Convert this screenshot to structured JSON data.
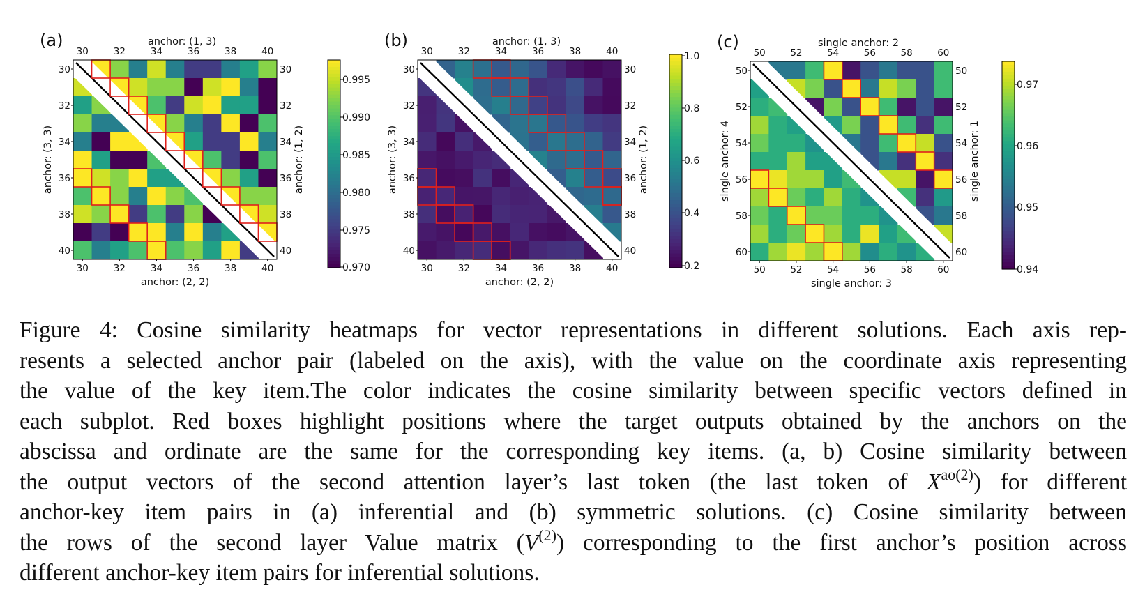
{
  "figure": {
    "panels": [
      {
        "label": "(a)",
        "top_label": "anchor: (1, 3)",
        "bottom_label": "anchor: (2, 2)",
        "left_label": "anchor: (3, 3)",
        "right_label": "anchor: (1, 2)",
        "ticks": [
          "30",
          "32",
          "34",
          "36",
          "38",
          "40"
        ],
        "colorbar_ticks": [
          "0.995",
          "0.990",
          "0.985",
          "0.980",
          "0.975",
          "0.970"
        ],
        "colorbar_range": [
          0.97,
          0.998
        ],
        "colormap": "viridis",
        "grid_size": 11
      },
      {
        "label": "(b)",
        "top_label": "anchor: (1, 3)",
        "bottom_label": "anchor: (2, 2)",
        "left_label": "anchor: (3, 3)",
        "right_label": "anchor: (1, 2)",
        "ticks": [
          "30",
          "32",
          "34",
          "36",
          "38",
          "40"
        ],
        "colorbar_ticks": [
          "1.0",
          "0.8",
          "0.6",
          "0.4",
          "0.2"
        ],
        "colorbar_range": [
          0.18,
          1.0
        ],
        "colormap": "viridis",
        "grid_size": 11
      },
      {
        "label": "(c)",
        "top_label": "single anchor: 2",
        "bottom_label": "single anchor: 3",
        "left_label": "single anchor: 4",
        "right_label": "single anchor: 1",
        "ticks": [
          "50",
          "52",
          "54",
          "56",
          "58",
          "60"
        ],
        "colorbar_ticks": [
          "0.97",
          "0.96",
          "0.95",
          "0.94"
        ],
        "colorbar_range": [
          0.938,
          0.973
        ],
        "colormap": "viridis",
        "grid_size": 11
      }
    ],
    "highlight_color": "#e0201c"
  },
  "caption": {
    "figure_label": "Figure 4:",
    "line1": "Cosine similarity heatmaps for vector representations in different solutions. Each axis rep-",
    "line2": "resents a selected anchor pair (labeled on the axis), with the value on the coordinate axis representing",
    "line3": "the value of the key item.The color indicates the cosine similarity between specific vectors defined in",
    "line4": "each subplot. Red boxes highlight positions where the target outputs obtained by the anchors on the",
    "line5": "abscissa and ordinate are the same for the corresponding key items. (a, b) Cosine similarity between",
    "line6_pre": "the output vectors of the second attention layer’s last token (the last token of ",
    "line6_math": "X",
    "line6_sup": "ao(2)",
    "line6_post": ") for different",
    "line7": "anchor-key item pairs in (a) inferential and (b) symmetric solutions. (c) Cosine similarity between",
    "line8_pre": "the rows of the second layer Value matrix (",
    "line8_math": "V",
    "line8_sup": "(2)",
    "line8_post": ") corresponding to the first anchor’s position across",
    "line9": "different anchor-key item pairs for inferential solutions."
  }
}
